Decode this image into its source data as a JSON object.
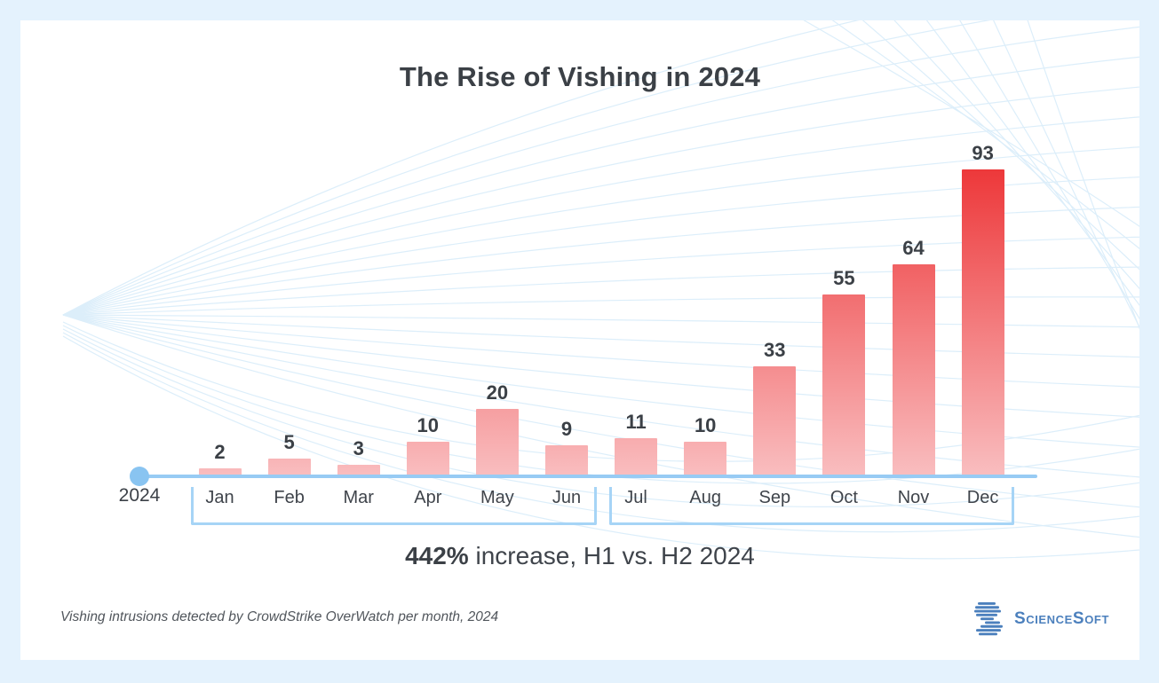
{
  "card": {
    "title": "The Rise of Vishing in 2024",
    "subtitle_bold": "442%",
    "subtitle_rest": " increase, H1 vs. H2 2024",
    "footnote": "Vishing intrusions detected by CrowdStrike OverWatch per month, 2024",
    "logo_text": "ScienceSoft"
  },
  "chart_data": {
    "type": "bar",
    "title": "The Rise of Vishing in 2024",
    "categories": [
      "Jan",
      "Feb",
      "Mar",
      "Apr",
      "May",
      "Jun",
      "Jul",
      "Aug",
      "Sep",
      "Oct",
      "Nov",
      "Dec"
    ],
    "values": [
      2,
      5,
      3,
      10,
      20,
      9,
      11,
      10,
      33,
      55,
      64,
      93
    ],
    "year_label": "2024",
    "annotation": "442% increase, H1 vs. H2 2024",
    "source_note": "Vishing intrusions detected by CrowdStrike OverWatch per month, 2024",
    "ylim": [
      0,
      100
    ],
    "grid": false,
    "legend": "none",
    "data_labels": true,
    "colors": {
      "bar_top_max": "#ED383A",
      "bar_bottom": "#F9BDBF",
      "axis_line": "#97CBF4",
      "axis_dot": "#89C4F1",
      "bracket": "#A6D4F6",
      "text_dark": "#3B4046",
      "frame": "#E4F2FD",
      "wave_line": "#DCEEFA",
      "logo_blue": "#4C80BD"
    }
  }
}
